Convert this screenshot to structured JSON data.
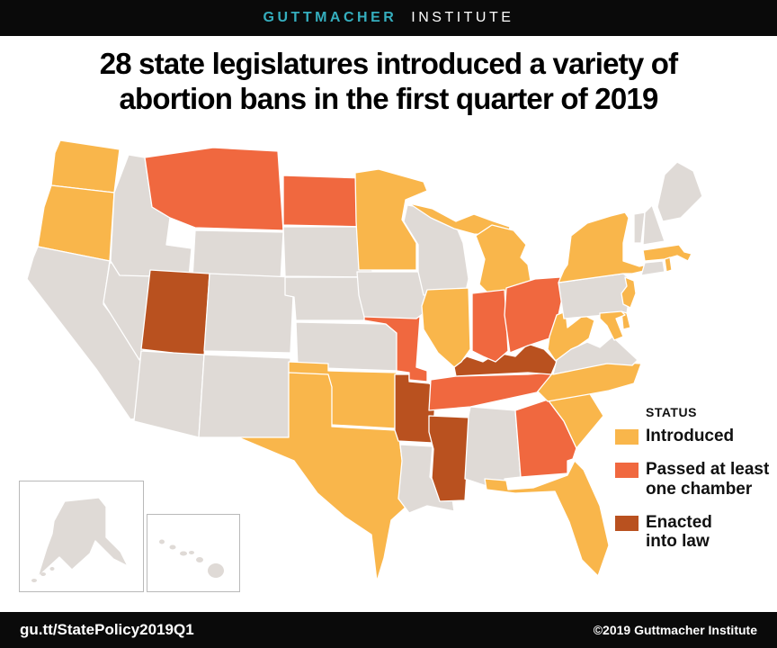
{
  "header": {
    "brand_primary": "GUTTMACHER",
    "brand_secondary": "INSTITUTE"
  },
  "title": {
    "line1": "28 state legislatures introduced a variety of",
    "line2": "abortion bans in the first quarter of 2019"
  },
  "legend": {
    "heading": "STATUS",
    "items": [
      {
        "label": "Introduced",
        "status": "introduced",
        "color": "#F9B64B"
      },
      {
        "label": "Passed at least\none chamber",
        "status": "passed",
        "color": "#F0683F"
      },
      {
        "label": "Enacted\ninto law",
        "status": "enacted",
        "color": "#B9511F"
      }
    ]
  },
  "footer": {
    "link": "gu.tt/StatePolicy2019Q1",
    "copyright": "©2019 Guttmacher Institute"
  },
  "map": {
    "colors": {
      "introduced": "#F9B64B",
      "passed": "#F0683F",
      "enacted": "#B9511F",
      "none": "#DFDAD6"
    }
  },
  "chart_data": {
    "type": "choropleth",
    "title": "28 state legislatures introduced a variety of abortion bans in the first quarter of 2019",
    "legend_title": "STATUS",
    "legend_position": "right",
    "states": {
      "WA": "introduced",
      "OR": "introduced",
      "MN": "introduced",
      "MI": "introduced",
      "IL": "introduced",
      "NY": "introduced",
      "NJ": "introduced",
      "MA": "introduced",
      "RI": "introduced",
      "DE": "introduced",
      "MD": "introduced",
      "WV": "introduced",
      "NC": "introduced",
      "SC": "introduced",
      "FL": "introduced",
      "TX": "introduced",
      "OK": "introduced",
      "MT": "passed",
      "ND": "passed",
      "MO": "passed",
      "IN": "passed",
      "OH": "passed",
      "TN": "passed",
      "GA": "passed",
      "UT": "enacted",
      "AR": "enacted",
      "MS": "enacted",
      "KY": "enacted",
      "CA": "none",
      "NV": "none",
      "ID": "none",
      "WY": "none",
      "CO": "none",
      "AZ": "none",
      "NM": "none",
      "SD": "none",
      "NE": "none",
      "KS": "none",
      "IA": "none",
      "WI": "none",
      "LA": "none",
      "AL": "none",
      "VA": "none",
      "PA": "none",
      "CT": "none",
      "VT": "none",
      "NH": "none",
      "ME": "none",
      "AK": "none",
      "HI": "none"
    },
    "counts": {
      "introduced": 17,
      "passed": 7,
      "enacted": 4,
      "total_with_bans": 28
    }
  }
}
